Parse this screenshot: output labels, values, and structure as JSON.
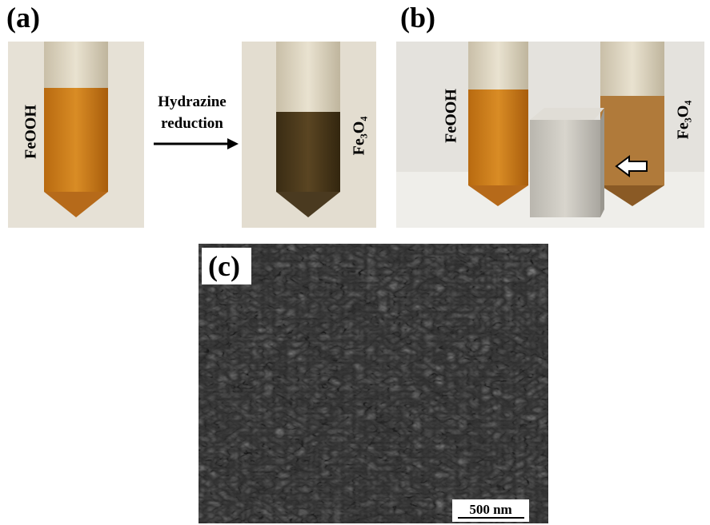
{
  "panels": {
    "a": {
      "label": "(a)",
      "left_label": "FeOOH",
      "arrow_text": [
        "Hydrazine",
        "reduction"
      ],
      "right_label": "Fe₃O₄"
    },
    "b": {
      "label": "(b)",
      "left_label": "FeOOH",
      "right_label": "Fe₃O₄"
    },
    "c": {
      "label": "(c)",
      "scale_bar": "500 nm"
    }
  }
}
